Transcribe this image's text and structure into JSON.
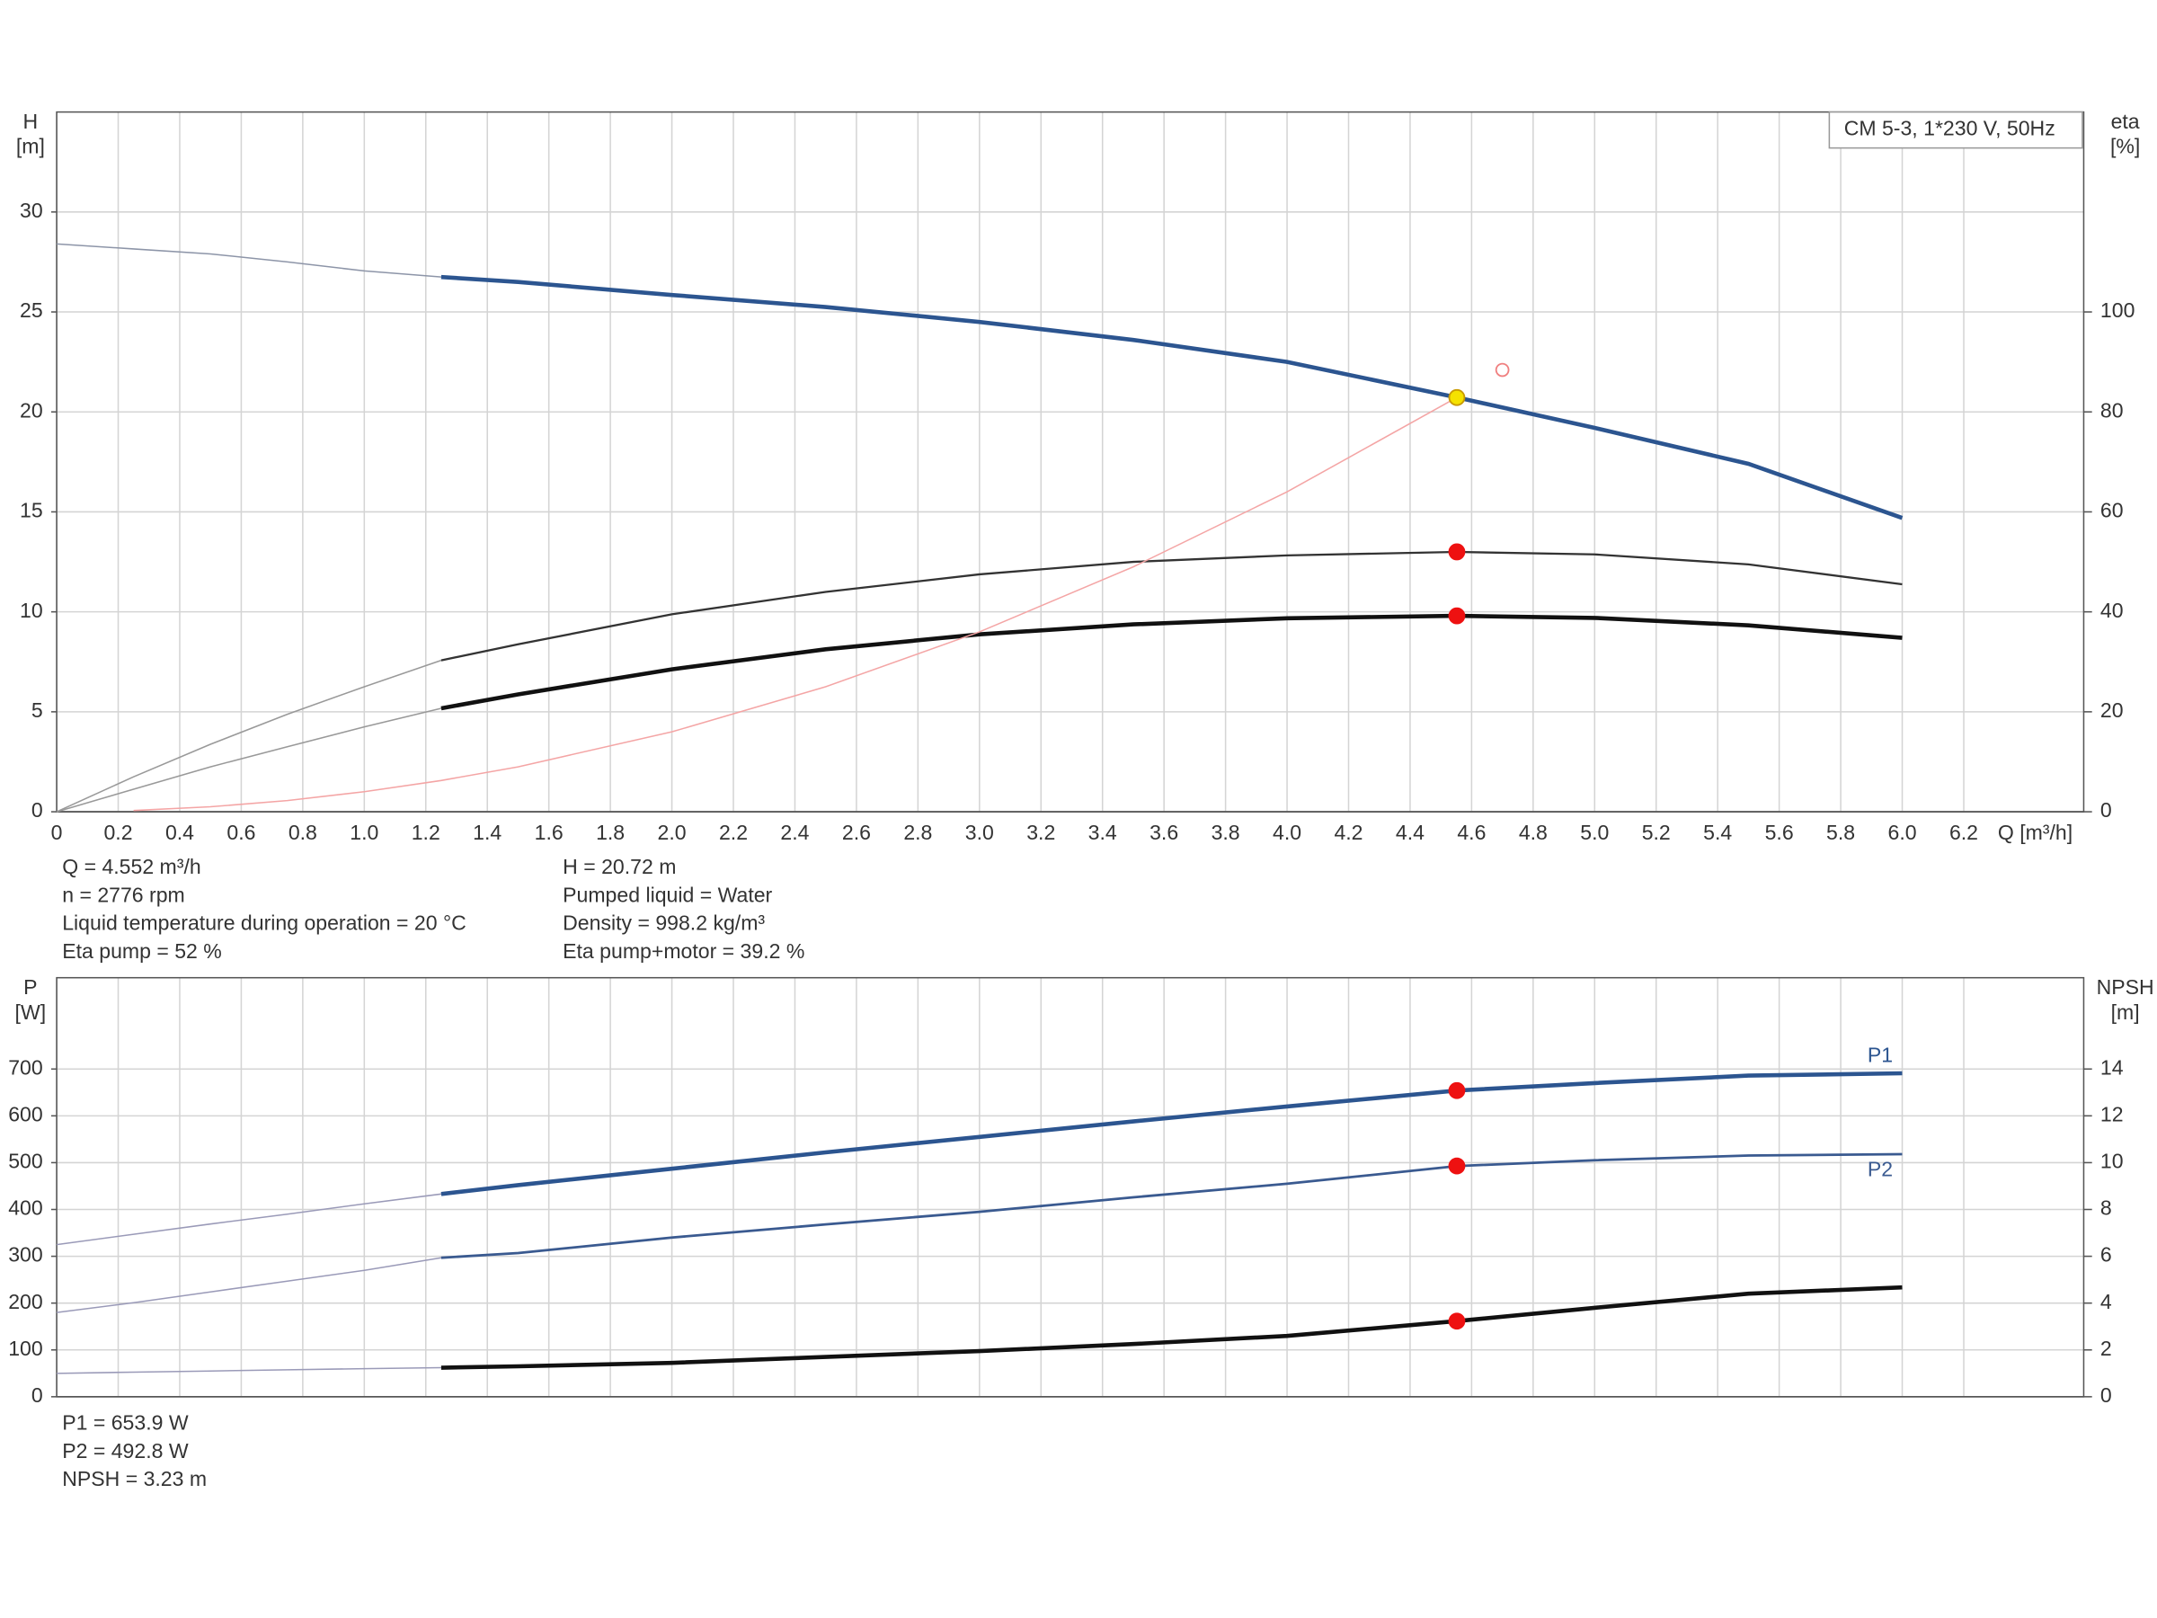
{
  "chart_data": [
    {
      "type": "line",
      "model": "CM 5-3, 1*230 V, 50Hz",
      "ylabel": [
        "H",
        "[m]"
      ],
      "y2label": [
        "eta",
        "[%]"
      ],
      "xlabel": "Q [m³/h]",
      "xlim": [
        0,
        6.59
      ],
      "ylim": [
        0,
        35
      ],
      "y2lim": [
        0,
        140
      ],
      "xticks": [
        0,
        0.2,
        0.4,
        0.6,
        0.8,
        {
          "value": 1,
          "label": "1.0"
        },
        1.2,
        1.4,
        1.6,
        1.8,
        {
          "value": 2,
          "label": "2.0"
        },
        2.2,
        2.4,
        2.6,
        2.8,
        {
          "value": 3,
          "label": "3.0"
        },
        3.2,
        3.4,
        3.6,
        3.8,
        {
          "value": 4,
          "label": "4.0"
        },
        4.2,
        4.4,
        4.6,
        4.8,
        {
          "value": 5,
          "label": "5.0"
        },
        5.2,
        5.4,
        5.6,
        5.8,
        {
          "value": 6,
          "label": "6.0"
        },
        6.2
      ],
      "yticks": [
        0,
        5,
        10,
        15,
        20,
        25,
        30
      ],
      "y2ticks": [
        0,
        20,
        40,
        60,
        80,
        100
      ],
      "grid": true,
      "x": [
        0,
        0.25,
        0.5,
        0.75,
        1.0,
        1.25,
        1.5,
        2.0,
        2.5,
        3.0,
        3.5,
        4.0,
        4.552,
        5.0,
        5.5,
        6.0
      ],
      "series": [
        {
          "color": "#8d95a8",
          "width": 1,
          "values": [
            28.4,
            28.15,
            27.9,
            27.5,
            27.05,
            26.75,
            null,
            null,
            null,
            null,
            null,
            null,
            null,
            null,
            null,
            null
          ]
        },
        {
          "color": "#2c5590",
          "width": 3,
          "values": [
            null,
            null,
            null,
            null,
            null,
            26.75,
            26.5,
            25.85,
            25.25,
            24.5,
            23.6,
            22.5,
            20.72,
            19.2,
            17.4,
            14.7
          ]
        },
        {
          "color": "#999999",
          "width": 1,
          "axis": "y2",
          "values": [
            0,
            7,
            13.5,
            19.5,
            25,
            30.3,
            null,
            null,
            null,
            null,
            null,
            null,
            null,
            null,
            null,
            null
          ]
        },
        {
          "color": "#333333",
          "width": 1.5,
          "axis": "y2",
          "values": [
            null,
            null,
            null,
            null,
            null,
            30.3,
            33.5,
            39.5,
            44,
            47.5,
            50,
            51.3,
            52,
            51.5,
            49.5,
            45.5
          ]
        },
        {
          "color": "#999999",
          "width": 1,
          "axis": "y2",
          "values": [
            0,
            4.5,
            9,
            13,
            17,
            20.7,
            null,
            null,
            null,
            null,
            null,
            null,
            null,
            null,
            null,
            null
          ]
        },
        {
          "color": "#111111",
          "width": 3,
          "axis": "y2",
          "values": [
            null,
            null,
            null,
            null,
            null,
            20.7,
            23.5,
            28.5,
            32.5,
            35.5,
            37.5,
            38.7,
            39.2,
            38.8,
            37.3,
            34.8
          ]
        },
        {
          "color": "#f4a5a5",
          "width": 1,
          "values": [
            null,
            0.06,
            0.25,
            0.56,
            1.0,
            1.56,
            2.25,
            4.0,
            6.25,
            9.0,
            12.25,
            16.0,
            20.72,
            null,
            null,
            null
          ]
        }
      ],
      "markers": [
        {
          "x": 4.552,
          "y": 20.72,
          "color": "#f5e200",
          "stroke": "#c99a00"
        },
        {
          "x": 4.552,
          "y": 52,
          "axis": "y2",
          "color": "#ee1111",
          "stroke": "#ee1111"
        },
        {
          "x": 4.552,
          "y": 39.2,
          "axis": "y2",
          "color": "#ee1111",
          "stroke": "#ee1111"
        },
        {
          "x": 4.7,
          "y": 22.1,
          "color": "none",
          "stroke": "#f08080"
        }
      ],
      "info": [
        [
          "Q = 4.552 m³/h",
          "n = 2776 rpm",
          "Liquid temperature during operation = 20 °C",
          "Eta pump = 52 %"
        ],
        [
          "H = 20.72 m",
          "Pumped liquid = Water",
          "Density = 998.2 kg/m³",
          "Eta pump+motor = 39.2 %"
        ]
      ]
    },
    {
      "type": "line",
      "ylabel": [
        "P",
        "[W]"
      ],
      "y2label": [
        "NPSH",
        "[m]"
      ],
      "xlim": [
        0,
        6.59
      ],
      "ylim": [
        0,
        895
      ],
      "y2lim": [
        0,
        17.9
      ],
      "yticks": [
        0,
        100,
        200,
        300,
        400,
        500,
        600,
        700
      ],
      "y2ticks": [
        0,
        2,
        4,
        6,
        8,
        10,
        12,
        14
      ],
      "grid": true,
      "x": [
        0,
        0.25,
        0.5,
        0.75,
        1.0,
        1.25,
        1.5,
        2.0,
        2.5,
        3.0,
        3.5,
        4.0,
        4.552,
        5.0,
        5.5,
        6.0
      ],
      "series": [
        {
          "color": "#9a9ab8",
          "width": 1,
          "values": [
            325,
            347,
            369,
            390,
            412,
            433,
            null,
            null,
            null,
            null,
            null,
            null,
            null,
            null,
            null,
            null
          ]
        },
        {
          "name": "P1",
          "label_pos": "above",
          "color": "#2c5590",
          "width": 3,
          "values": [
            null,
            null,
            null,
            null,
            null,
            433,
            452,
            487,
            522,
            555,
            588,
            620,
            653.9,
            670,
            686,
            691
          ]
        },
        {
          "color": "#9a9ab8",
          "width": 1,
          "values": [
            180,
            201,
            224,
            247,
            270,
            297,
            null,
            null,
            null,
            null,
            null,
            null,
            null,
            null,
            null,
            null
          ]
        },
        {
          "name": "P2",
          "label_pos": "below",
          "color": "#3a5a90",
          "width": 1.8,
          "values": [
            null,
            null,
            null,
            null,
            null,
            297,
            307,
            340,
            368,
            395,
            426,
            455,
            492.8,
            505,
            515,
            518
          ]
        },
        {
          "color": "#9a9ab8",
          "width": 1,
          "axis": "y2",
          "values": [
            1.0,
            1.05,
            1.1,
            1.15,
            1.2,
            1.24,
            null,
            null,
            null,
            null,
            null,
            null,
            null,
            null,
            null,
            null
          ]
        },
        {
          "color": "#111111",
          "width": 3,
          "axis": "y2",
          "values": [
            null,
            null,
            null,
            null,
            null,
            1.24,
            1.3,
            1.45,
            1.7,
            1.95,
            2.25,
            2.6,
            3.23,
            3.8,
            4.4,
            4.67
          ]
        }
      ],
      "markers": [
        {
          "x": 4.552,
          "y": 653.9,
          "color": "#ee1111",
          "stroke": "#ee1111"
        },
        {
          "x": 4.552,
          "y": 492.8,
          "color": "#ee1111",
          "stroke": "#ee1111"
        },
        {
          "x": 4.552,
          "y": 3.23,
          "axis": "y2",
          "color": "#ee1111",
          "stroke": "#ee1111"
        }
      ],
      "info": [
        [
          "P1 = 653.9 W",
          "P2 = 492.8 W",
          "NPSH = 3.23 m"
        ]
      ]
    }
  ]
}
